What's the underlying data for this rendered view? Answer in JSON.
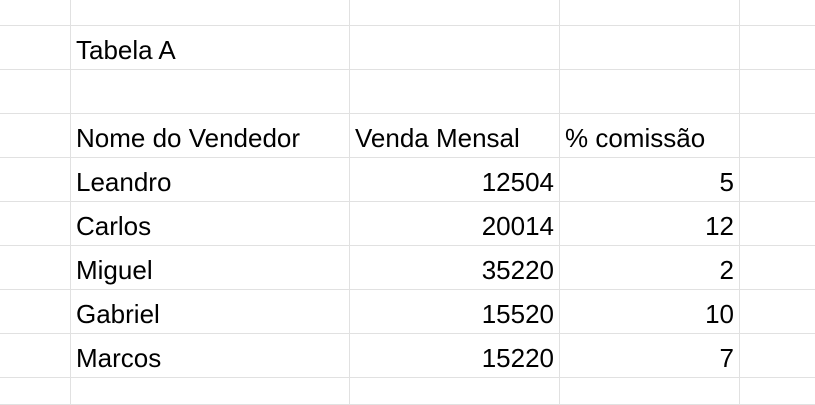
{
  "sheet": {
    "title": "Tabela A",
    "headers": [
      "Nome do Vendedor",
      "Venda Mensal",
      "% comissão"
    ],
    "rows": [
      [
        "Leandro",
        "12504",
        "5"
      ],
      [
        "Carlos",
        "20014",
        "12"
      ],
      [
        "Miguel",
        "35220",
        "2"
      ],
      [
        "Gabriel",
        "15520",
        "10"
      ],
      [
        "Marcos",
        "15220",
        "7"
      ]
    ]
  }
}
